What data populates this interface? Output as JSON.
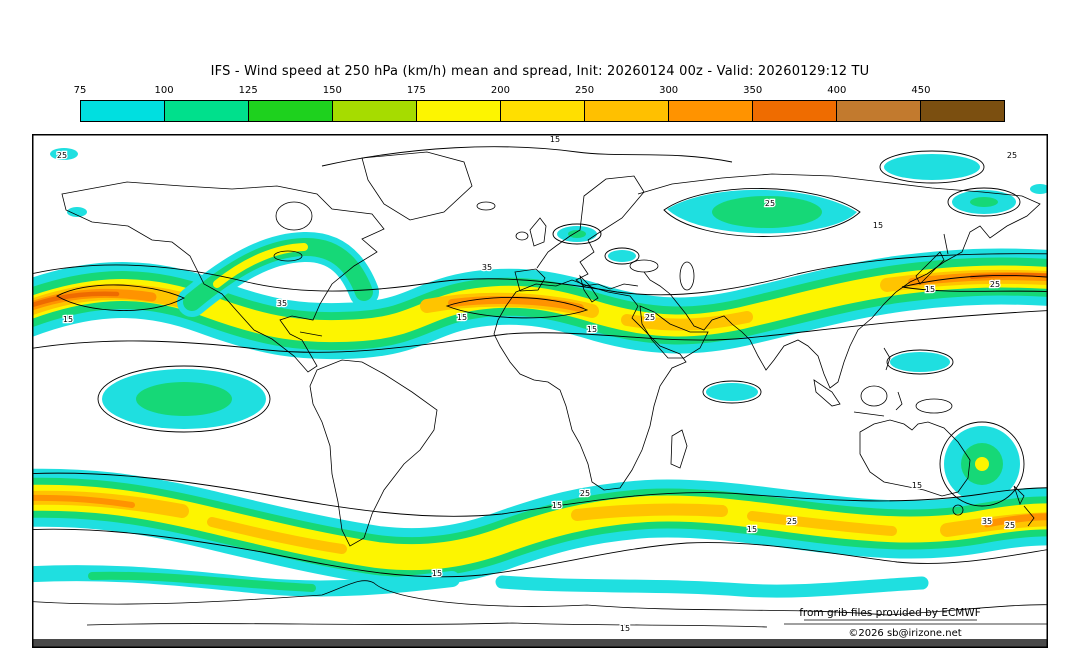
{
  "title": "IFS - Wind speed at 250 hPa (km/h) mean and spread, Init: 20260124 00z - Valid: 20260129:12 TU",
  "colorbar": {
    "tick_labels": [
      "75",
      "100",
      "125",
      "150",
      "175",
      "200",
      "250",
      "300",
      "350",
      "400",
      "450"
    ],
    "colors": [
      "#00dfe0",
      "#00e08c",
      "#1ed11e",
      "#a6dc00",
      "#fdf500",
      "#ffdf00",
      "#ffc000",
      "#ff9300",
      "#ef6c00",
      "#c27a2e",
      "#7b4f10"
    ]
  },
  "map": {
    "labels": {
      "15": "15",
      "25": "25",
      "35": "35"
    }
  },
  "footer": {
    "credit": "from grib files provided by ECMWF",
    "copyright": "©2026 sb@irizone.net"
  },
  "chart_data": {
    "type": "heatmap",
    "title": "IFS - Wind speed at 250 hPa (km/h) mean and spread, Init: 20260124 00z - Valid: 20260129:12 TU",
    "model": "IFS",
    "variable": "Wind speed at 250 hPa",
    "units": "km/h",
    "statistic": "ensemble mean (color shading) and spread (black contours)",
    "init": "20260124 00z",
    "valid": "20260129:12 TU",
    "shading_levels": [
      75,
      100,
      125,
      150,
      175,
      200,
      250,
      300,
      350,
      400,
      450
    ],
    "palette": [
      "#00dfe0",
      "#00e08c",
      "#1ed11e",
      "#a6dc00",
      "#fdf500",
      "#ffdf00",
      "#ffc000",
      "#ff9300",
      "#ef6c00",
      "#c27a2e",
      "#7b4f10"
    ],
    "spread_contour_levels": [
      15,
      25,
      35
    ],
    "credit": "from grib files provided by ECMWF",
    "copyright": "©2026 sb@irizone.net"
  }
}
